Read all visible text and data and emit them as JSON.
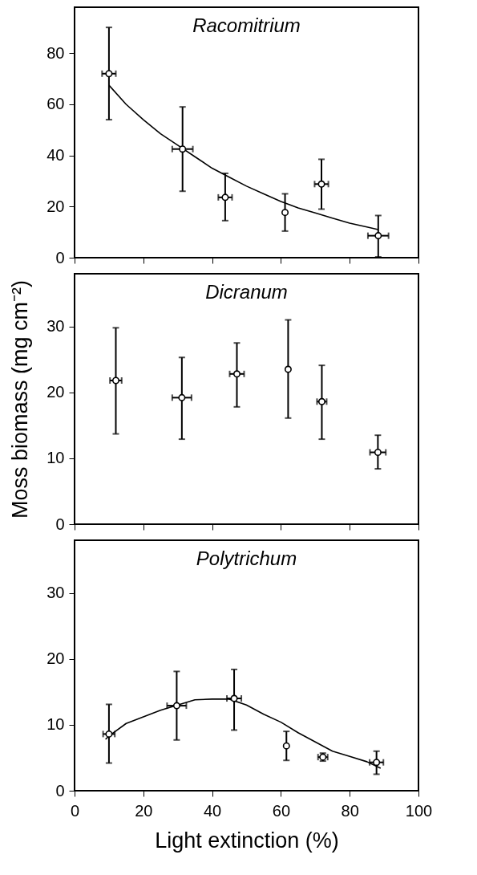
{
  "chart_data": [
    {
      "type": "scatter",
      "title": "Racomitrium",
      "xlim": [
        0,
        100
      ],
      "xticks": [
        0,
        20,
        40,
        60,
        80,
        100
      ],
      "ylim": [
        0,
        98
      ],
      "yticks": [
        0,
        20,
        40,
        60,
        80
      ],
      "tick_labels": "y",
      "grid": false,
      "series": [
        {
          "color": "#000000",
          "marker": "circle",
          "x": [
            10.0,
            31.4,
            43.8,
            61.2,
            71.8,
            88.3
          ],
          "values": [
            72.0,
            42.5,
            23.6,
            17.7,
            28.8,
            8.6
          ],
          "errors": [
            [
              54.0,
              90.1
            ],
            [
              26,
              59
            ],
            [
              14.5,
              33
            ],
            [
              10.4,
              25
            ],
            [
              19,
              38.5
            ],
            [
              0.3,
              16.5
            ]
          ],
          "xerrors": [
            2,
            3,
            2,
            null,
            2,
            3
          ]
        },
        {
          "type": "line",
          "color": "#000000",
          "x": [
            10,
            15,
            20,
            25,
            30,
            35,
            40,
            45,
            50,
            55,
            60,
            65,
            70,
            75,
            80,
            85,
            88.3
          ],
          "values": [
            67.5,
            60,
            54,
            48.5,
            44,
            39.5,
            35,
            31.5,
            28,
            25,
            22,
            19.5,
            17.5,
            15.5,
            13.5,
            12,
            11
          ]
        }
      ]
    },
    {
      "type": "scatter",
      "title": "Dicranum",
      "ylabel": "Moss biomass (mg cm⁻²)",
      "xlim": [
        0,
        100
      ],
      "xticks": [
        0,
        20,
        40,
        60,
        80,
        100
      ],
      "ylim": [
        0,
        38
      ],
      "yticks": [
        0,
        10,
        20,
        30
      ],
      "tick_labels": "y",
      "grid": false,
      "series": [
        {
          "color": "#000000",
          "marker": "circle",
          "x": [
            12.0,
            31.2,
            47.2,
            62.1,
            71.9,
            88.2
          ],
          "values": [
            21.8,
            19.2,
            22.8,
            23.5,
            18.6,
            10.9
          ],
          "errors": [
            [
              13.7,
              29.8
            ],
            [
              12.9,
              25.3
            ],
            [
              17.8,
              27.5
            ],
            [
              16.1,
              31
            ],
            [
              12.9,
              24.1
            ],
            [
              8.4,
              13.5
            ]
          ],
          "xerrors": [
            1.7,
            2.8,
            2.1,
            null,
            1.4,
            2.3
          ]
        }
      ]
    },
    {
      "type": "scatter",
      "title": "Polytrichum",
      "xlabel": "Light extinction (%)",
      "xlim": [
        0,
        100
      ],
      "xticks": [
        0,
        20,
        40,
        60,
        80,
        100
      ],
      "ylim": [
        0,
        38
      ],
      "yticks": [
        0,
        10,
        20,
        30
      ],
      "grid": false,
      "series": [
        {
          "color": "#000000",
          "marker": "circle",
          "x": [
            10.0,
            29.7,
            46.4,
            61.6,
            72.2,
            87.8
          ],
          "values": [
            8.6,
            12.9,
            14.0,
            6.8,
            5.1,
            4.3
          ],
          "errors": [
            [
              4.2,
              13.1
            ],
            [
              7.7,
              18.1
            ],
            [
              9.2,
              18.4
            ],
            [
              4.6,
              9.0
            ],
            [
              4.5,
              5.7
            ],
            [
              2.5,
              6.0
            ]
          ],
          "xerrors": [
            1.7,
            2.8,
            2.1,
            null,
            1.4,
            2
          ]
        },
        {
          "type": "line",
          "color": "#000000",
          "x": [
            9,
            10,
            15,
            20,
            25,
            30,
            35,
            40,
            45,
            50,
            55,
            60,
            65,
            70,
            75,
            80,
            85,
            89
          ],
          "values": [
            7.8,
            8.3,
            10.2,
            11.2,
            12.2,
            13.0,
            13.8,
            13.9,
            13.9,
            13.0,
            11.6,
            10.4,
            8.8,
            7.4,
            6.0,
            5.2,
            4.4,
            3.4
          ]
        }
      ]
    }
  ]
}
